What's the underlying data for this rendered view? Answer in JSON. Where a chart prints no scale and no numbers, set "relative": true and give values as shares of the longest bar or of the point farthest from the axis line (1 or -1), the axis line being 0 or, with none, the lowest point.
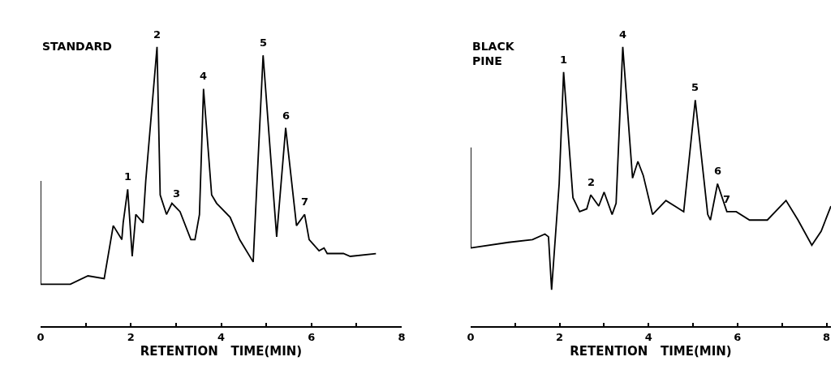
{
  "chart_data": [
    {
      "type": "line",
      "title": "STANDARD",
      "xlabel": "RETENTION   TIME(MIN)",
      "relative": true,
      "color": "#000000",
      "marker": "none",
      "grid": false,
      "tick_labels": "x",
      "xlim": [
        0,
        8
      ],
      "xticks": [
        0,
        {
          "value": 1,
          "label": null
        },
        2,
        {
          "value": 3,
          "label": null
        },
        4,
        {
          "value": 5,
          "label": null
        },
        6,
        {
          "value": 7,
          "label": null
        },
        8
      ],
      "x": [
        0,
        0,
        0.66,
        1.05,
        1.41,
        1.61,
        1.8,
        1.83,
        1.93,
        2.03,
        2.11,
        2.27,
        2.33,
        2.58,
        2.65,
        2.79,
        2.91,
        3.09,
        3.33,
        3.42,
        3.52,
        3.61,
        3.79,
        3.9,
        4.2,
        4.41,
        4.71,
        4.93,
        5.23,
        5.43,
        5.67,
        5.85,
        5.95,
        6.17,
        6.28,
        6.35,
        6.71,
        6.86,
        7.43
      ],
      "values": [
        0.52,
        0.15,
        0.15,
        0.18,
        0.17,
        0.36,
        0.31,
        0.37,
        0.49,
        0.25,
        0.4,
        0.37,
        0.52,
        1,
        0.47,
        0.4,
        0.44,
        0.41,
        0.31,
        0.31,
        0.4,
        0.85,
        0.47,
        0.44,
        0.39,
        0.31,
        0.23,
        0.97,
        0.32,
        0.71,
        0.36,
        0.4,
        0.31,
        0.27,
        0.28,
        0.26,
        0.26,
        0.25,
        0.26
      ],
      "annotations": [
        {
          "text": "1",
          "x": 1.93,
          "y": 0.49
        },
        {
          "text": "2",
          "x": 2.58,
          "y": 1
        },
        {
          "text": "3",
          "x": 3.02,
          "y": 0.43
        },
        {
          "text": "4",
          "x": 3.61,
          "y": 0.85
        },
        {
          "text": "5",
          "x": 4.93,
          "y": 0.97
        },
        {
          "text": "6",
          "x": 5.43,
          "y": 0.71
        },
        {
          "text": "7",
          "x": 5.85,
          "y": 0.4
        }
      ]
    },
    {
      "type": "line",
      "title": "BLACK\nPINE",
      "xlabel": "RETENTION   TIME(MIN)",
      "relative": true,
      "color": "#000000",
      "marker": "none",
      "grid": false,
      "tick_labels": "x",
      "xlim": [
        0,
        8.1
      ],
      "xticks": [
        0,
        {
          "value": 1,
          "label": null
        },
        2,
        {
          "value": 3,
          "label": null
        },
        4,
        {
          "value": 5,
          "label": null
        },
        6,
        {
          "value": 7,
          "label": null
        },
        8
      ],
      "x": [
        0,
        0,
        0.85,
        1.39,
        1.67,
        1.75,
        1.82,
        1.99,
        2.09,
        2.3,
        2.45,
        2.61,
        2.7,
        2.88,
        3,
        3.18,
        3.27,
        3.42,
        3.64,
        3.76,
        3.88,
        4.09,
        4.39,
        4.79,
        5.05,
        5.33,
        5.39,
        5.55,
        5.76,
        5.97,
        6.27,
        6.67,
        7.09,
        7.36,
        7.67,
        7.88,
        8.1
      ],
      "values": [
        0.64,
        0.28,
        0.3,
        0.31,
        0.33,
        0.32,
        0.13,
        0.51,
        0.91,
        0.46,
        0.41,
        0.42,
        0.47,
        0.43,
        0.48,
        0.4,
        0.44,
        1,
        0.53,
        0.59,
        0.54,
        0.4,
        0.45,
        0.41,
        0.81,
        0.4,
        0.38,
        0.51,
        0.41,
        0.41,
        0.38,
        0.38,
        0.45,
        0.38,
        0.29,
        0.34,
        0.43
      ],
      "annotations": [
        {
          "text": "1",
          "x": 2.09,
          "y": 0.91
        },
        {
          "text": "2",
          "x": 2.7,
          "y": 0.47
        },
        {
          "text": "4",
          "x": 3.42,
          "y": 1
        },
        {
          "text": "5",
          "x": 5.05,
          "y": 0.81
        },
        {
          "text": "6",
          "x": 5.55,
          "y": 0.51
        },
        {
          "text": "7",
          "x": 5.76,
          "y": 0.41
        }
      ]
    }
  ]
}
